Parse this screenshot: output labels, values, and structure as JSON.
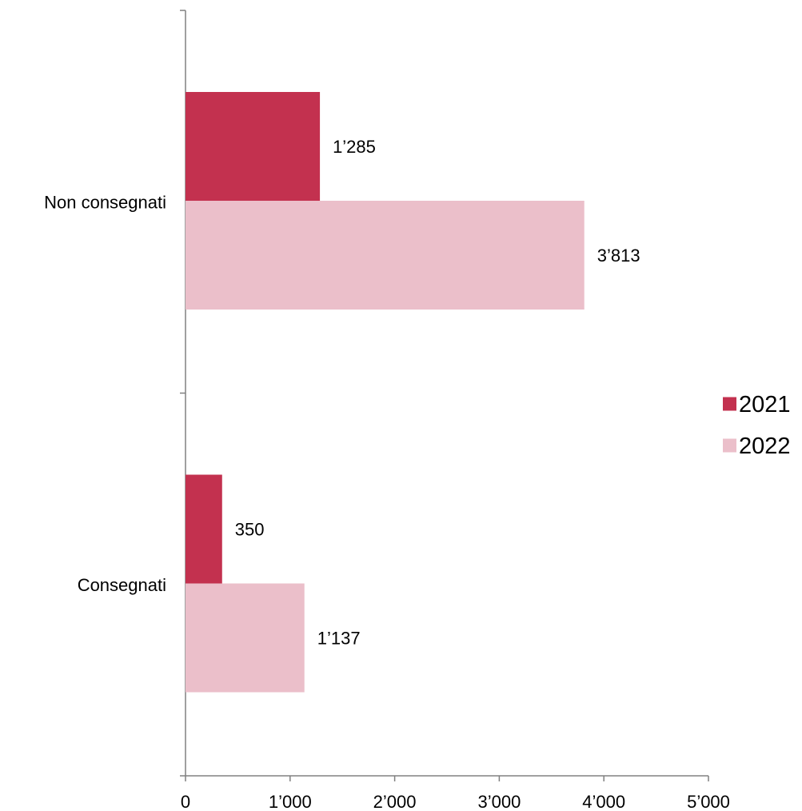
{
  "chart_data": {
    "type": "bar",
    "orientation": "horizontal",
    "categories": [
      "Non consegnati",
      "Consegnati"
    ],
    "series": [
      {
        "name": "2021",
        "values": [
          1285,
          350
        ],
        "labels": [
          "1’285",
          "350"
        ],
        "color": "#c3314f"
      },
      {
        "name": "2022",
        "values": [
          3813,
          1137
        ],
        "labels": [
          "3’813",
          "1’137"
        ],
        "color": "#ebbfca"
      }
    ],
    "xlim": [
      0,
      5000
    ],
    "xticks": [
      0,
      1000,
      2000,
      3000,
      4000,
      5000
    ],
    "xtick_labels": [
      "0",
      "1’000",
      "2’000",
      "3’000",
      "4’000",
      "5’000"
    ],
    "title": "",
    "xlabel": "",
    "ylabel": "",
    "grid": false,
    "legend_position": "right"
  },
  "colors": {
    "axis": "#808080"
  }
}
